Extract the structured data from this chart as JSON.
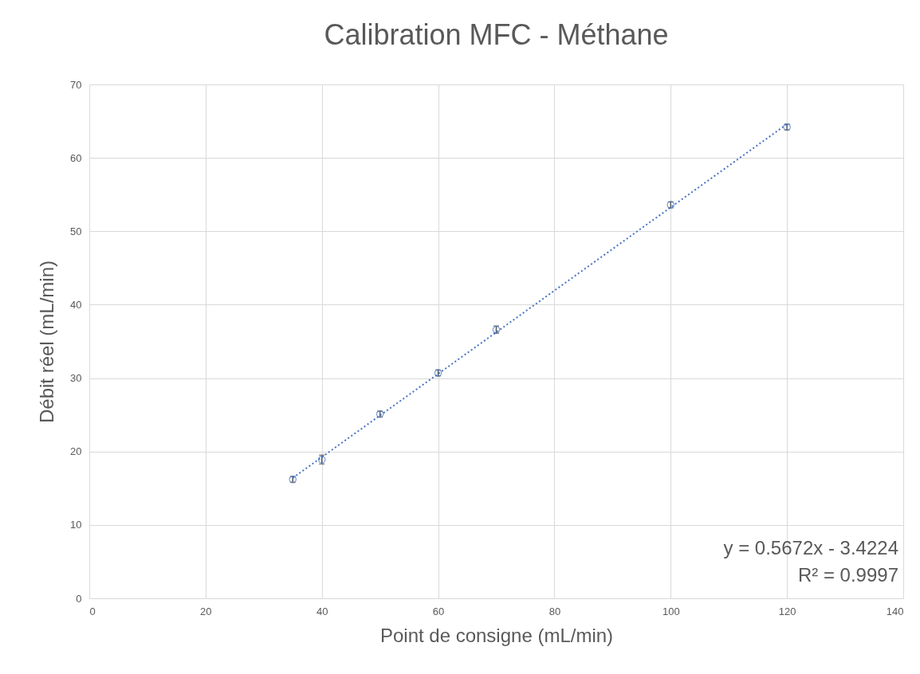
{
  "chart_data": {
    "type": "scatter",
    "title": "Calibration MFC - Méthane",
    "xlabel": "Point de consigne (mL/min)",
    "ylabel": "Débit réel (mL/min)",
    "x": [
      35,
      40,
      50,
      60,
      70,
      100,
      120
    ],
    "series": [
      {
        "color": "#4472c4",
        "marker": "circle",
        "values": [
          16.2,
          18.9,
          25.1,
          30.7,
          36.6,
          53.6,
          64.2
        ],
        "errors": [
          0.4,
          0.6,
          0.4,
          0.4,
          0.5,
          0.4,
          0.4
        ]
      },
      {
        "type": "line",
        "color": "#4472c4",
        "line_style": "dotted",
        "marker": "none",
        "x": [
          35,
          120
        ],
        "values": [
          16.4,
          64.6
        ]
      }
    ],
    "xlim": [
      0,
      140
    ],
    "xticks": [
      0,
      20,
      40,
      60,
      80,
      100,
      120,
      140
    ],
    "ylim": [
      0,
      70
    ],
    "yticks": [
      0,
      10,
      20,
      30,
      40,
      50,
      60,
      70
    ],
    "grid": true,
    "annotations": [
      "y = 0.5672x - 3.4224",
      "R² = 0.9997"
    ]
  }
}
